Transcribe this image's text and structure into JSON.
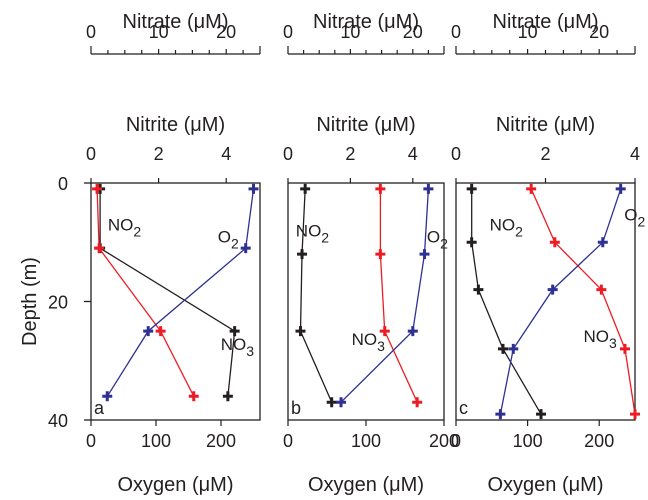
{
  "shared": {
    "ylabel": "Depth (m)",
    "yticks": [
      0,
      20,
      40
    ],
    "ylim": [
      0,
      40
    ]
  },
  "chart_data": [
    {
      "type": "line",
      "panel_label": "a",
      "top_axis": {
        "label": "Nitrate (μM)",
        "ticks": [
          0,
          10,
          20
        ],
        "lim": [
          0,
          25
        ]
      },
      "mid_axis": {
        "label": "Nitrite (μM)",
        "ticks": [
          0,
          2,
          4
        ],
        "lim": [
          0,
          5
        ]
      },
      "bottom_axis": {
        "label": "Oxygen (μM)",
        "ticks": [
          0,
          100,
          200
        ],
        "lim": [
          0,
          260
        ]
      },
      "series": [
        {
          "name": "NO2",
          "axis": "mid_axis",
          "color": "#231f20",
          "label_pos": [
            0.5,
            8
          ],
          "points": [
            [
              0.27,
              1
            ],
            [
              0.27,
              11
            ],
            [
              4.25,
              25
            ],
            [
              4.05,
              36
            ]
          ]
        },
        {
          "name": "NO3",
          "axis": "top_axis",
          "color": "#ed1c24",
          "label_pos": [
            19.2,
            28.2
          ],
          "points": [
            [
              0.9,
              1
            ],
            [
              1.2,
              11
            ],
            [
              10.3,
              25
            ],
            [
              15.2,
              36
            ]
          ]
        },
        {
          "name": "O2",
          "axis": "bottom_axis",
          "color": "#2e3192",
          "label_pos": [
            195,
            10
          ],
          "points": [
            [
              250,
              1
            ],
            [
              238,
              11
            ],
            [
              88,
              25
            ],
            [
              25,
              36
            ]
          ]
        }
      ]
    },
    {
      "type": "line",
      "panel_label": "b",
      "top_axis": {
        "label": "Nitrate (μM)",
        "ticks": [
          0,
          10,
          20
        ],
        "lim": [
          0,
          25
        ]
      },
      "mid_axis": {
        "label": "Nitrite (μM)",
        "ticks": [
          0,
          2,
          4
        ],
        "lim": [
          0,
          5
        ]
      },
      "bottom_axis": {
        "label": "Oxygen (μM)",
        "ticks": [
          0,
          100,
          200
        ],
        "lim": [
          0,
          200
        ]
      },
      "series": [
        {
          "name": "NO2",
          "axis": "mid_axis",
          "color": "#231f20",
          "label_pos": [
            0.25,
            9
          ],
          "points": [
            [
              0.55,
              1
            ],
            [
              0.45,
              12
            ],
            [
              0.4,
              25
            ],
            [
              1.4,
              37
            ]
          ]
        },
        {
          "name": "NO3",
          "axis": "top_axis",
          "color": "#ed1c24",
          "label_pos": [
            10.2,
            27.3
          ],
          "points": [
            [
              14.8,
              1
            ],
            [
              14.8,
              12
            ],
            [
              15.5,
              25
            ],
            [
              20.7,
              37
            ]
          ]
        },
        {
          "name": "O2",
          "axis": "bottom_axis",
          "color": "#2e3192",
          "label_pos": [
            178,
            10
          ],
          "points": [
            [
              180,
              1
            ],
            [
              175,
              12
            ],
            [
              160,
              25
            ],
            [
              68,
              37
            ]
          ]
        }
      ]
    },
    {
      "type": "line",
      "panel_label": "c",
      "top_axis": {
        "label": "Nitrate (μM)",
        "ticks": [
          0,
          10,
          20
        ],
        "lim": [
          0,
          25
        ]
      },
      "mid_axis": {
        "label": "Nitrite (μM)",
        "ticks": [
          0,
          2,
          4
        ],
        "lim": [
          0,
          4
        ]
      },
      "bottom_axis": {
        "label": "Oxygen (μM)",
        "ticks": [
          0,
          100,
          200
        ],
        "lim": [
          0,
          250
        ]
      },
      "series": [
        {
          "name": "NO2",
          "axis": "mid_axis",
          "color": "#231f20",
          "label_pos": [
            0.75,
            8
          ],
          "points": [
            [
              0.35,
              1
            ],
            [
              0.35,
              10
            ],
            [
              0.5,
              18
            ],
            [
              1.05,
              28
            ],
            [
              1.9,
              39
            ]
          ]
        },
        {
          "name": "NO3",
          "axis": "top_axis",
          "color": "#ed1c24",
          "label_pos": [
            17.8,
            26.8
          ],
          "points": [
            [
              10.5,
              1
            ],
            [
              13.8,
              10
            ],
            [
              20.3,
              18
            ],
            [
              23.6,
              28
            ],
            [
              25,
              39
            ]
          ]
        },
        {
          "name": "O2",
          "axis": "bottom_axis",
          "color": "#2e3192",
          "label_pos": [
            235,
            6.3
          ],
          "points": [
            [
              230,
              1
            ],
            [
              205,
              10
            ],
            [
              135,
              18
            ],
            [
              80,
              28
            ],
            [
              62,
              39
            ]
          ]
        }
      ]
    }
  ]
}
